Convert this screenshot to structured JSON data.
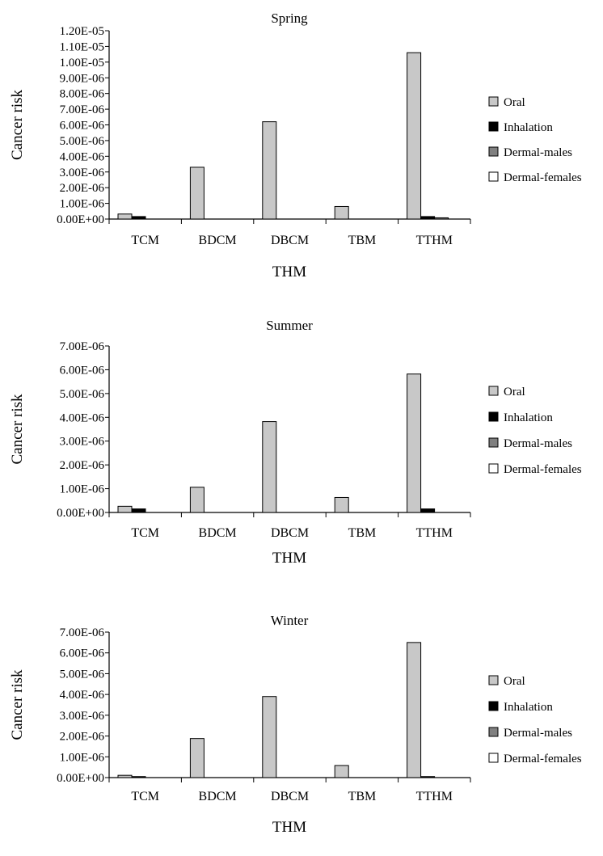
{
  "chart_data": [
    {
      "type": "bar",
      "title": "Spring",
      "xlabel": "THM",
      "ylabel": "Cancer risk",
      "ylim": [
        0,
        1.2e-05
      ],
      "yticks": [
        "0.00E+00",
        "1.00E-06",
        "2.00E-06",
        "3.00E-06",
        "4.00E-06",
        "5.00E-06",
        "6.00E-06",
        "7.00E-06",
        "8.00E-06",
        "9.00E-06",
        "1.00E-05",
        "1.10E-05",
        "1.20E-05"
      ],
      "categories": [
        "TCM",
        "BDCM",
        "DBCM",
        "TBM",
        "TTHM"
      ],
      "series": [
        {
          "name": "Oral",
          "values": [
            3.2e-07,
            3.3e-06,
            6.2e-06,
            8e-07,
            1.06e-05
          ]
        },
        {
          "name": "Inhalation",
          "values": [
            1.6e-07,
            0,
            0,
            0,
            1.6e-07
          ]
        },
        {
          "name": "Dermal-males",
          "values": [
            0,
            0,
            0,
            0,
            8e-08
          ]
        },
        {
          "name": "Dermal-females",
          "values": [
            0,
            0,
            0,
            0,
            0
          ]
        }
      ],
      "legend_position": "right",
      "grid": false
    },
    {
      "type": "bar",
      "title": "Summer",
      "xlabel": "THM",
      "ylabel": "Cancer risk",
      "ylim": [
        0,
        7e-06
      ],
      "yticks": [
        "0.00E+00",
        "1.00E-06",
        "2.00E-06",
        "3.00E-06",
        "4.00E-06",
        "5.00E-06",
        "6.00E-06",
        "7.00E-06"
      ],
      "categories": [
        "TCM",
        "BDCM",
        "DBCM",
        "TBM",
        "TTHM"
      ],
      "series": [
        {
          "name": "Oral",
          "values": [
            2.6e-07,
            1.06e-06,
            3.82e-06,
            6.3e-07,
            5.82e-06
          ]
        },
        {
          "name": "Inhalation",
          "values": [
            1.5e-07,
            0,
            0,
            0,
            1.5e-07
          ]
        },
        {
          "name": "Dermal-males",
          "values": [
            0,
            0,
            0,
            0,
            0
          ]
        },
        {
          "name": "Dermal-females",
          "values": [
            0,
            0,
            0,
            0,
            0
          ]
        }
      ],
      "legend_position": "right",
      "grid": false
    },
    {
      "type": "bar",
      "title": "Winter",
      "xlabel": "THM",
      "ylabel": "Cancer risk",
      "ylim": [
        0,
        7e-06
      ],
      "yticks": [
        "0.00E+00",
        "1.00E-06",
        "2.00E-06",
        "3.00E-06",
        "4.00E-06",
        "5.00E-06",
        "6.00E-06",
        "7.00E-06"
      ],
      "categories": [
        "TCM",
        "BDCM",
        "DBCM",
        "TBM",
        "TTHM"
      ],
      "series": [
        {
          "name": "Oral",
          "values": [
            1.1e-07,
            1.88e-06,
            3.9e-06,
            5.8e-07,
            6.5e-06
          ]
        },
        {
          "name": "Inhalation",
          "values": [
            5e-08,
            0,
            0,
            0,
            5e-08
          ]
        },
        {
          "name": "Dermal-males",
          "values": [
            0,
            0,
            0,
            0,
            0
          ]
        },
        {
          "name": "Dermal-females",
          "values": [
            0,
            0,
            0,
            0,
            0
          ]
        }
      ],
      "legend_position": "right",
      "grid": false
    }
  ],
  "colors": {
    "Oral": "#c8c8c8",
    "Inhalation": "#000000",
    "Dermal-males": "#808080",
    "Dermal-females": "#ffffff"
  }
}
